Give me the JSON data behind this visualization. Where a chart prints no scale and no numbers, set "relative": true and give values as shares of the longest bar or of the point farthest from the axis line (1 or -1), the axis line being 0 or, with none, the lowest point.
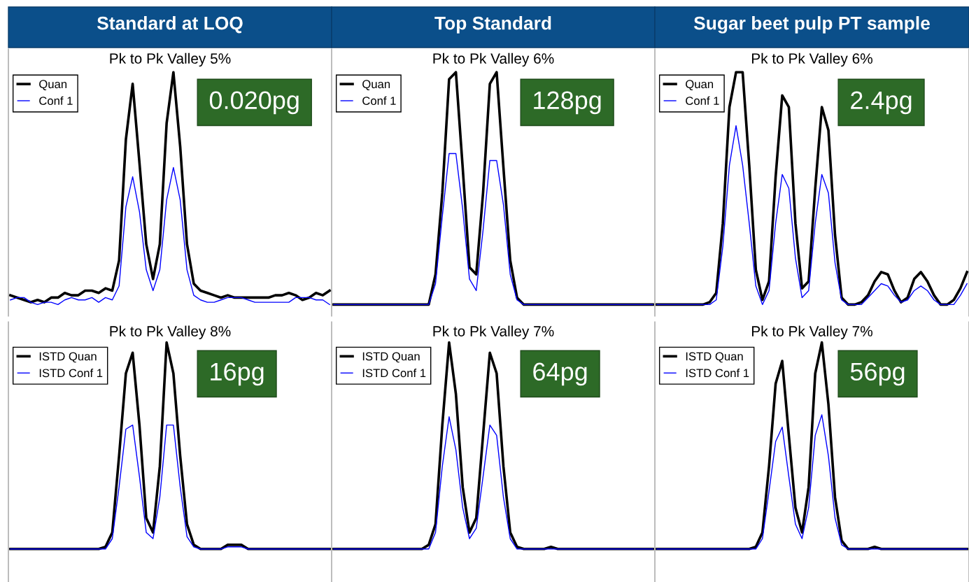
{
  "chart_data": [
    {
      "type": "line",
      "title": "Standard at LOQ",
      "relative": true,
      "legend": "top left",
      "categories": [
        null,
        null,
        null,
        null,
        null,
        null,
        null,
        null,
        null,
        null,
        null,
        null,
        null,
        null,
        null,
        null,
        null,
        null,
        null,
        null,
        null,
        null,
        null,
        null,
        null,
        null,
        null,
        null,
        null,
        null,
        null,
        null,
        null,
        null,
        null,
        null,
        null,
        null,
        null,
        null,
        null,
        null,
        null,
        null,
        null,
        null,
        null,
        null
      ],
      "series": [
        {
          "name": "Quan",
          "color": "#000000",
          "values": [
            0.04,
            0.03,
            0.02,
            0.01,
            0.02,
            0.01,
            0.03,
            0.03,
            0.05,
            0.04,
            0.04,
            0.06,
            0.06,
            0.05,
            0.07,
            0.06,
            0.19,
            0.71,
            0.95,
            0.61,
            0.26,
            0.11,
            0.26,
            0.78,
            1.0,
            0.68,
            0.26,
            0.09,
            0.06,
            0.05,
            0.04,
            0.03,
            0.04,
            0.03,
            0.03,
            0.03,
            0.03,
            0.03,
            0.03,
            0.04,
            0.04,
            0.05,
            0.04,
            0.02,
            0.03,
            0.05,
            0.04,
            0.06
          ]
        },
        {
          "name": "Conf 1",
          "color": "#0000ff",
          "values": [
            0.02,
            0.03,
            0.03,
            0.01,
            0.0,
            0.01,
            0.01,
            0.0,
            0.02,
            0.03,
            0.02,
            0.02,
            0.03,
            0.01,
            0.03,
            0.02,
            0.08,
            0.42,
            0.55,
            0.4,
            0.15,
            0.06,
            0.15,
            0.45,
            0.59,
            0.45,
            0.15,
            0.04,
            0.02,
            0.01,
            0.01,
            0.02,
            0.03,
            0.03,
            0.03,
            0.02,
            0.01,
            0.01,
            0.01,
            0.01,
            0.01,
            0.01,
            0.03,
            0.03,
            0.03,
            0.02,
            0.02,
            0.0
          ]
        }
      ],
      "annotations": [
        "Pk to Pk Valley 5%",
        "0.020pg"
      ]
    },
    {
      "type": "line",
      "relative": true,
      "legend": "top left",
      "categories": [
        null,
        null,
        null,
        null,
        null,
        null,
        null,
        null,
        null,
        null,
        null,
        null,
        null,
        null,
        null,
        null,
        null,
        null,
        null,
        null,
        null,
        null,
        null,
        null,
        null,
        null,
        null,
        null,
        null,
        null,
        null,
        null,
        null,
        null,
        null,
        null,
        null,
        null,
        null,
        null,
        null,
        null,
        null,
        null,
        null,
        null,
        null,
        null
      ],
      "series": [
        {
          "name": "ISTD Quan",
          "color": "#000000",
          "values": [
            0,
            0,
            0,
            0,
            0,
            0,
            0,
            0,
            0,
            0,
            0,
            0,
            0,
            0,
            0.01,
            0.08,
            0.45,
            0.85,
            0.95,
            0.6,
            0.15,
            0.08,
            0.4,
            1.0,
            0.85,
            0.45,
            0.12,
            0.02,
            0,
            0,
            0,
            0,
            0.02,
            0.02,
            0.02,
            0,
            0,
            0,
            0,
            0,
            0,
            0,
            0,
            0,
            0,
            0,
            0,
            0
          ]
        },
        {
          "name": "ISTD Conf 1",
          "color": "#0000ff",
          "values": [
            0,
            0,
            0,
            0,
            0,
            0,
            0,
            0,
            0,
            0,
            0,
            0,
            0,
            0,
            0,
            0.05,
            0.3,
            0.58,
            0.6,
            0.35,
            0.08,
            0.05,
            0.25,
            0.6,
            0.6,
            0.3,
            0.06,
            0.01,
            0,
            0,
            0,
            0,
            0.01,
            0.01,
            0.01,
            0,
            0,
            0,
            0,
            0,
            0,
            0,
            0,
            0,
            0,
            0,
            0,
            0
          ]
        }
      ],
      "annotations": [
        "Pk to Pk Valley 8%",
        "16pg"
      ]
    },
    {
      "type": "line",
      "title": "Top Standard",
      "relative": true,
      "legend": "top left",
      "categories": [
        null,
        null,
        null,
        null,
        null,
        null,
        null,
        null,
        null,
        null,
        null,
        null,
        null,
        null,
        null,
        null,
        null,
        null,
        null,
        null,
        null,
        null,
        null,
        null,
        null,
        null,
        null,
        null,
        null,
        null,
        null,
        null,
        null,
        null,
        null,
        null,
        null,
        null,
        null,
        null,
        null,
        null,
        null,
        null,
        null,
        null,
        null,
        null
      ],
      "series": [
        {
          "name": "Quan",
          "color": "#000000",
          "values": [
            0,
            0,
            0,
            0,
            0,
            0,
            0,
            0,
            0,
            0,
            0,
            0,
            0,
            0,
            0,
            0.13,
            0.48,
            0.97,
            1.0,
            0.59,
            0.16,
            0.13,
            0.48,
            0.95,
            1.0,
            0.59,
            0.19,
            0.03,
            0,
            0,
            0,
            0,
            0,
            0,
            0,
            0,
            0,
            0,
            0,
            0,
            0,
            0,
            0,
            0,
            0,
            0,
            0,
            0
          ]
        },
        {
          "name": "Conf 1",
          "color": "#0000ff",
          "values": [
            0,
            0,
            0,
            0,
            0,
            0,
            0,
            0,
            0,
            0,
            0,
            0,
            0,
            0,
            0,
            0.09,
            0.38,
            0.65,
            0.65,
            0.41,
            0.11,
            0.06,
            0.32,
            0.62,
            0.62,
            0.43,
            0.13,
            0.02,
            0,
            0,
            0,
            0,
            0,
            0,
            0,
            0,
            0,
            0,
            0,
            0,
            0,
            0,
            0,
            0,
            0,
            0,
            0,
            0
          ]
        }
      ],
      "annotations": [
        "Pk to Pk Valley 6%",
        "128pg"
      ]
    },
    {
      "type": "line",
      "relative": true,
      "legend": "top left",
      "categories": [
        null,
        null,
        null,
        null,
        null,
        null,
        null,
        null,
        null,
        null,
        null,
        null,
        null,
        null,
        null,
        null,
        null,
        null,
        null,
        null,
        null,
        null,
        null,
        null,
        null,
        null,
        null,
        null,
        null,
        null,
        null,
        null,
        null,
        null,
        null,
        null,
        null,
        null,
        null,
        null,
        null,
        null,
        null,
        null,
        null,
        null,
        null,
        null
      ],
      "series": [
        {
          "name": "ISTD Quan",
          "color": "#000000",
          "values": [
            0,
            0,
            0,
            0,
            0,
            0,
            0,
            0,
            0,
            0,
            0,
            0,
            0,
            0,
            0.02,
            0.12,
            0.6,
            1.0,
            0.75,
            0.3,
            0.08,
            0.15,
            0.55,
            0.95,
            0.85,
            0.4,
            0.08,
            0.01,
            0,
            0,
            0,
            0,
            0.01,
            0,
            0,
            0,
            0,
            0,
            0,
            0,
            0,
            0,
            0,
            0,
            0,
            0,
            0,
            0
          ]
        },
        {
          "name": "ISTD Conf 1",
          "color": "#0000ff",
          "values": [
            0,
            0,
            0,
            0,
            0,
            0,
            0,
            0,
            0,
            0,
            0,
            0,
            0,
            0,
            0,
            0.08,
            0.4,
            0.64,
            0.48,
            0.2,
            0.05,
            0.1,
            0.35,
            0.6,
            0.55,
            0.25,
            0.05,
            0,
            0,
            0,
            0,
            0,
            0,
            0,
            0,
            0,
            0,
            0,
            0,
            0,
            0,
            0,
            0,
            0,
            0,
            0,
            0,
            0
          ]
        }
      ],
      "annotations": [
        "Pk to Pk Valley 7%",
        "64pg"
      ]
    },
    {
      "type": "line",
      "title": "Sugar beet pulp PT sample",
      "relative": true,
      "legend": "top left",
      "categories": [
        null,
        null,
        null,
        null,
        null,
        null,
        null,
        null,
        null,
        null,
        null,
        null,
        null,
        null,
        null,
        null,
        null,
        null,
        null,
        null,
        null,
        null,
        null,
        null,
        null,
        null,
        null,
        null,
        null,
        null,
        null,
        null,
        null,
        null,
        null,
        null,
        null,
        null,
        null,
        null,
        null,
        null,
        null,
        null,
        null,
        null,
        null,
        null
      ],
      "series": [
        {
          "name": "Quan",
          "color": "#000000",
          "values": [
            0,
            0,
            0,
            0,
            0,
            0,
            0,
            0,
            0.01,
            0.05,
            0.35,
            0.85,
            1,
            1,
            0.6,
            0.15,
            0.02,
            0.1,
            0.55,
            0.9,
            0.85,
            0.35,
            0.07,
            0.1,
            0.5,
            0.85,
            0.75,
            0.3,
            0.03,
            0,
            0,
            0.01,
            0.04,
            0.1,
            0.14,
            0.13,
            0.06,
            0.01,
            0.03,
            0.11,
            0.14,
            0.1,
            0.04,
            0,
            0,
            0.02,
            0.07,
            0.14
          ]
        },
        {
          "name": "Conf 1",
          "color": "#0000ff",
          "values": [
            0,
            0,
            0,
            0,
            0,
            0,
            0,
            0,
            0,
            0.02,
            0.25,
            0.6,
            0.77,
            0.6,
            0.35,
            0.08,
            0,
            0.06,
            0.35,
            0.56,
            0.5,
            0.2,
            0.03,
            0.06,
            0.35,
            0.56,
            0.48,
            0.18,
            0.02,
            0,
            0,
            0,
            0.03,
            0.06,
            0.09,
            0.08,
            0.04,
            0.01,
            0.02,
            0.06,
            0.08,
            0.06,
            0.02,
            0,
            0,
            0,
            0.04,
            0.09
          ]
        }
      ],
      "annotations": [
        "Pk to Pk Valley 6%",
        "2.4pg"
      ]
    },
    {
      "type": "line",
      "relative": true,
      "legend": "top left",
      "categories": [
        null,
        null,
        null,
        null,
        null,
        null,
        null,
        null,
        null,
        null,
        null,
        null,
        null,
        null,
        null,
        null,
        null,
        null,
        null,
        null,
        null,
        null,
        null,
        null,
        null,
        null,
        null,
        null,
        null,
        null,
        null,
        null,
        null,
        null,
        null,
        null,
        null,
        null,
        null,
        null,
        null,
        null,
        null,
        null,
        null,
        null,
        null,
        null
      ],
      "series": [
        {
          "name": "ISTD Quan",
          "color": "#000000",
          "values": [
            0,
            0,
            0,
            0,
            0,
            0,
            0,
            0,
            0,
            0,
            0,
            0,
            0,
            0,
            0,
            0.01,
            0.08,
            0.4,
            0.8,
            0.91,
            0.55,
            0.2,
            0.08,
            0.3,
            0.85,
            1.0,
            0.7,
            0.25,
            0.04,
            0,
            0,
            0,
            0,
            0.01,
            0,
            0,
            0,
            0,
            0,
            0,
            0,
            0,
            0,
            0,
            0,
            0,
            0,
            0
          ]
        },
        {
          "name": "ISTD Conf 1",
          "color": "#0000ff",
          "values": [
            0,
            0,
            0,
            0,
            0,
            0,
            0,
            0,
            0,
            0,
            0,
            0,
            0,
            0,
            0,
            0,
            0.05,
            0.28,
            0.52,
            0.59,
            0.35,
            0.12,
            0.05,
            0.2,
            0.55,
            0.65,
            0.45,
            0.15,
            0.02,
            0,
            0,
            0,
            0,
            0,
            0,
            0,
            0,
            0,
            0,
            0,
            0,
            0,
            0,
            0,
            0,
            0,
            0,
            0
          ]
        }
      ],
      "annotations": [
        "Pk to Pk Valley 7%",
        "56pg"
      ]
    }
  ]
}
